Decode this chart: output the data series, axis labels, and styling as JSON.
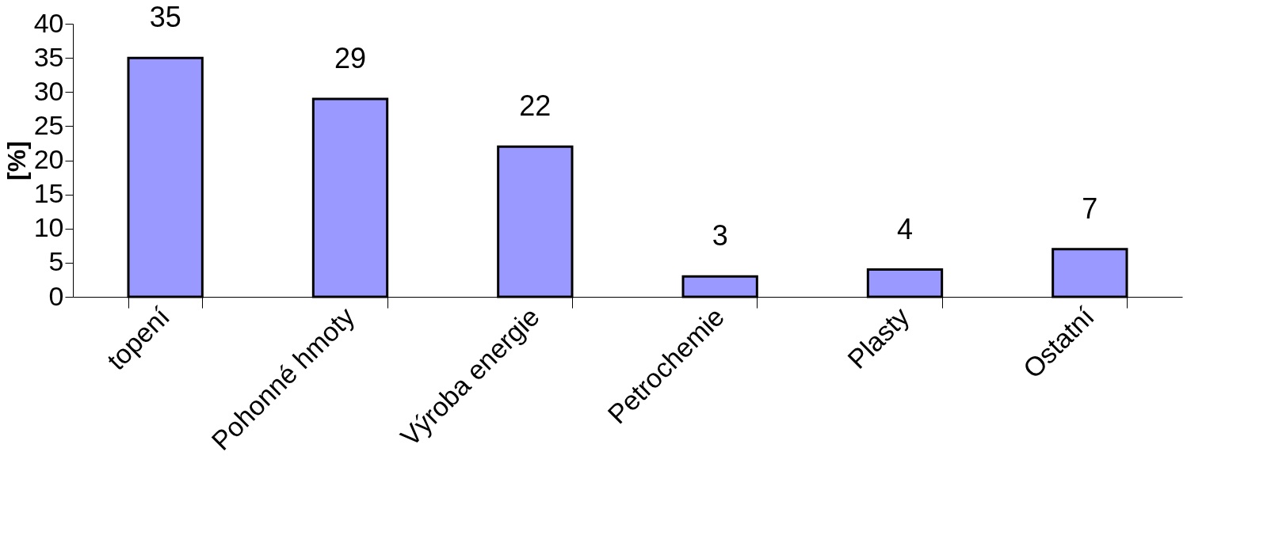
{
  "chart_data": {
    "type": "bar",
    "ylabel": "[%]",
    "categories": [
      "topení",
      "Pohonné hmoty",
      "Výroba energie",
      "Petrochemie",
      "Plasty",
      "Ostatní"
    ],
    "values": [
      35,
      29,
      22,
      3,
      4,
      7
    ],
    "color": "#9999ff",
    "ylim": [
      0,
      40
    ],
    "yticks": [
      0,
      5,
      10,
      15,
      20,
      25,
      30,
      35,
      40
    ],
    "grid": false,
    "data_labels": true
  }
}
